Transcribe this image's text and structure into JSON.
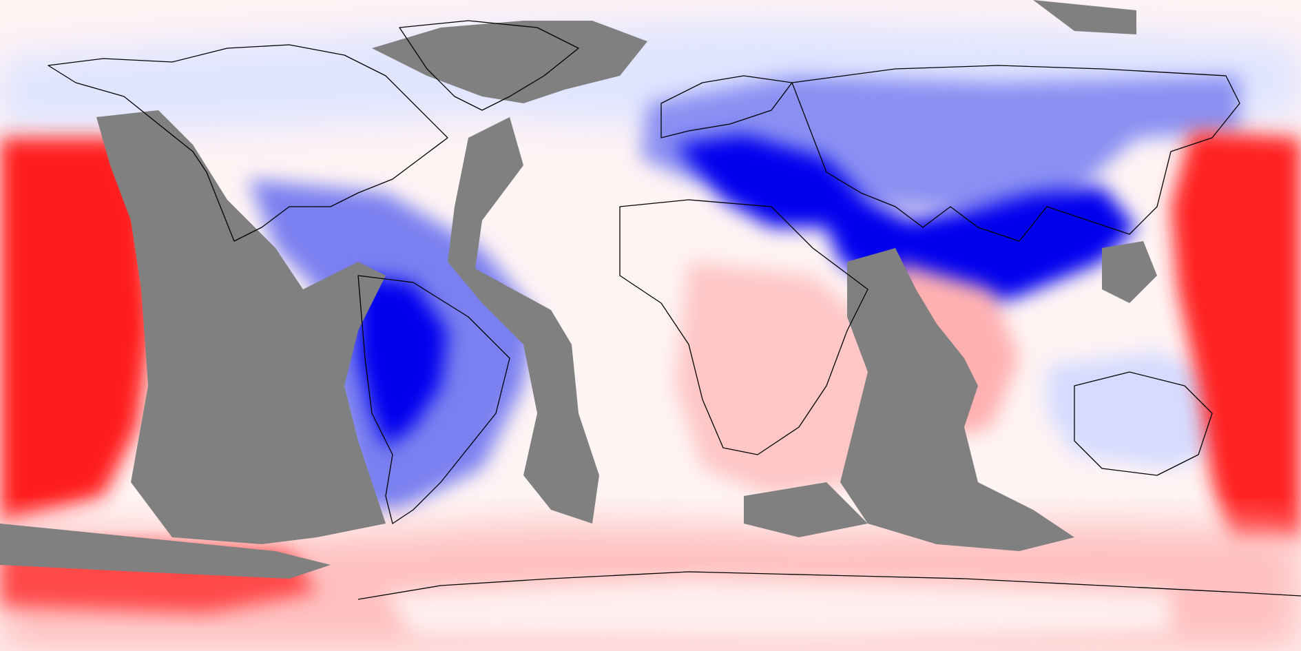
{
  "map": {
    "projection": "equirectangular",
    "extent": {
      "lon": [
        -180,
        180
      ],
      "lat": [
        -90,
        90
      ]
    },
    "no_data_color": "#808080",
    "coastline_color": "#000000",
    "colors": {
      "strong_negative": "#0000ee",
      "negative": "#6f74ee",
      "weak_negative": "#dfe4ff",
      "neutral": "#ffffff",
      "weak_positive": "#ffd9d9",
      "positive": "#ff9090",
      "strong_positive": "#ff1a1a"
    },
    "legend": null,
    "labels": []
  }
}
